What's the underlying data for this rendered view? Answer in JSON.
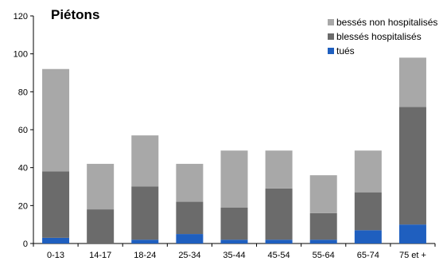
{
  "chart_data": {
    "type": "bar",
    "stacked": true,
    "title": "Piétons",
    "xlabel": "",
    "ylabel": "",
    "ylim": [
      0,
      120
    ],
    "yticks": [
      0,
      20,
      40,
      60,
      80,
      100,
      120
    ],
    "grid": false,
    "legend_position": "top-right",
    "categories": [
      "0-13",
      "14-17",
      "18-24",
      "25-34",
      "35-44",
      "45-54",
      "55-64",
      "65-74",
      "75 et +"
    ],
    "series": [
      {
        "name": "tués",
        "color": "#1f5fbf",
        "values": [
          3,
          0,
          2,
          5,
          2,
          2,
          2,
          7,
          10
        ]
      },
      {
        "name": "blessés hospitalisés",
        "color": "#6b6b6b",
        "values": [
          35,
          18,
          28,
          17,
          17,
          27,
          14,
          20,
          62
        ]
      },
      {
        "name": "bessés non hospitalisés",
        "color": "#a8a8a8",
        "values": [
          54,
          24,
          27,
          20,
          30,
          20,
          20,
          22,
          26
        ]
      }
    ],
    "legend_order": [
      "bessés non hospitalisés",
      "blessés hospitalisés",
      "tués"
    ]
  }
}
